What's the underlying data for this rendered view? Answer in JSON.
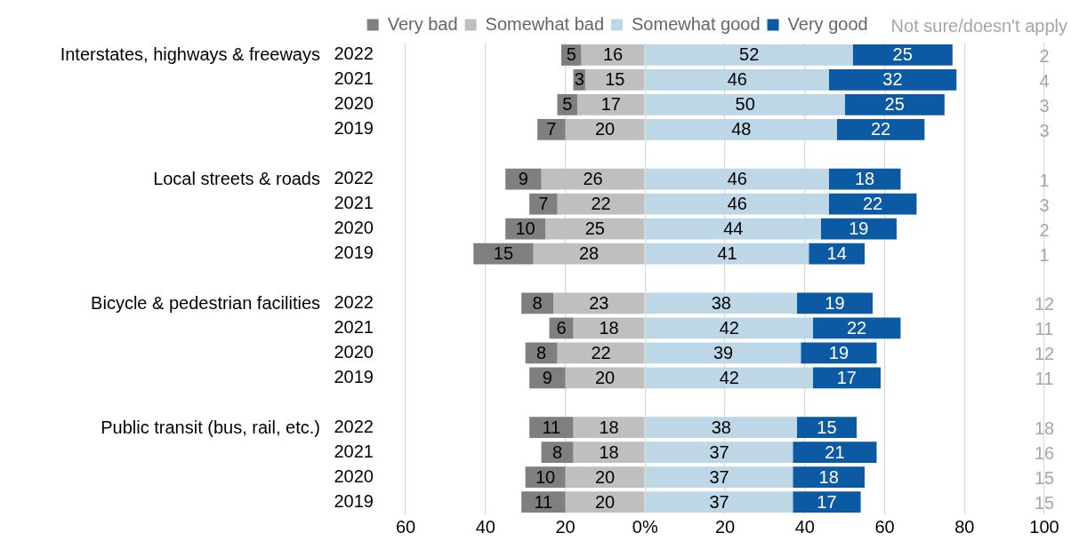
{
  "chart_data": [
    {
      "type": "bar",
      "orientation": "horizontal",
      "stacked": true,
      "legend": "top",
      "grid": "x",
      "data_labels": true,
      "categories": [
        "2022",
        "2021",
        "2020",
        "2019",
        null,
        "2022",
        "2021",
        "2020",
        "2019",
        null,
        "2022",
        "2021",
        "2020",
        "2019",
        null,
        "2022",
        "2021",
        "2020",
        "2019"
      ],
      "annotations": [
        {
          "text": "Interstates, highways & freeways"
        },
        {
          "text": "Local streets & roads"
        },
        {
          "text": "Bicycle & pedestrian facilities"
        },
        {
          "text": "Public transit (bus, rail, etc.)"
        }
      ],
      "xlim": [
        -60,
        100
      ],
      "xticks": [
        {
          "value": -60,
          "label": "60"
        },
        {
          "value": -40,
          "label": "40"
        },
        {
          "value": -20,
          "label": "20"
        },
        {
          "value": 0,
          "label": "0%"
        },
        20,
        40,
        60,
        80,
        100
      ],
      "series": [
        {
          "name": "Very bad",
          "color": "#7f7f7f",
          "values": [
            5,
            3,
            5,
            7,
            null,
            9,
            7,
            10,
            15,
            null,
            8,
            6,
            8,
            9,
            null,
            11,
            8,
            10,
            11
          ],
          "base": [
            -21,
            -18,
            -22,
            -27,
            null,
            -35,
            -29,
            -35,
            -43,
            null,
            -31,
            -24,
            -30,
            -29,
            null,
            -29,
            -26,
            -30,
            -31
          ]
        },
        {
          "name": "Somewhat bad",
          "color": "#bfbfbf",
          "values": [
            16,
            15,
            17,
            20,
            null,
            26,
            22,
            25,
            28,
            null,
            23,
            18,
            22,
            20,
            null,
            18,
            18,
            20,
            20
          ],
          "base": [
            -16,
            -15,
            -17,
            -20,
            null,
            -26,
            -22,
            -25,
            -28,
            null,
            -23,
            -18,
            -22,
            -20,
            null,
            -18,
            -18,
            -20,
            -20
          ]
        },
        {
          "name": "Somewhat good",
          "color": "#bdd7e7",
          "values": [
            52,
            46,
            50,
            48,
            null,
            46,
            46,
            44,
            41,
            null,
            38,
            42,
            39,
            42,
            null,
            38,
            37,
            37,
            37
          ]
        },
        {
          "name": "Very good",
          "color": "#0b5aa3",
          "values": [
            25,
            32,
            25,
            22,
            null,
            18,
            22,
            19,
            14,
            null,
            19,
            22,
            19,
            17,
            null,
            15,
            21,
            18,
            17
          ]
        }
      ]
    },
    {
      "type": "other",
      "title": "Not sure/doesn't apply",
      "data_labels": true,
      "categories": [
        null,
        null,
        null,
        null,
        null,
        null,
        null,
        null,
        null,
        null,
        null,
        null,
        null,
        null,
        null,
        null
      ],
      "values": [
        2,
        4,
        3,
        3,
        1,
        3,
        2,
        1,
        12,
        11,
        12,
        11,
        18,
        16,
        15,
        15
      ]
    }
  ]
}
